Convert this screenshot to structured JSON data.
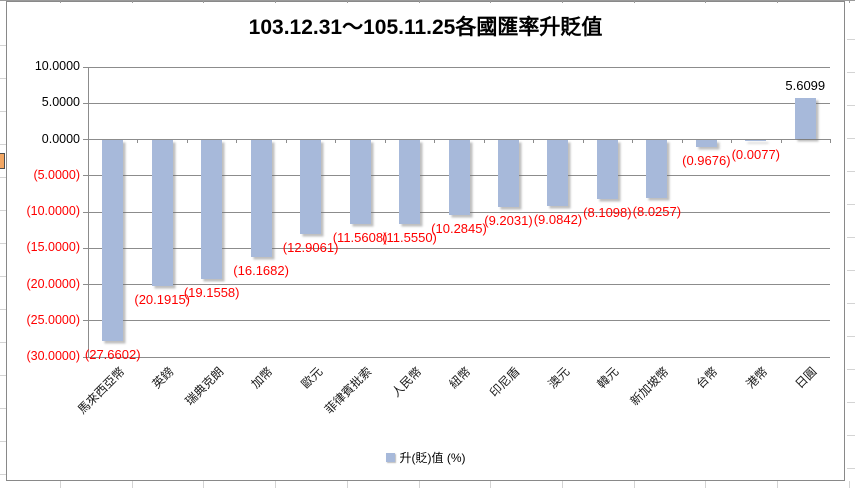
{
  "chart_data": {
    "type": "bar",
    "title": "103.12.31～105.11.25各國匯率升貶值",
    "categories": [
      "馬來西亞幣",
      "英鎊",
      "瑞典克朗",
      "加幣",
      "歐元",
      "菲律賓批索",
      "人民幣",
      "紐幣",
      "印尼盾",
      "澳元",
      "韓元",
      "新加坡幣",
      "台幣",
      "港幣",
      "日圓"
    ],
    "series": [
      {
        "name": "升(貶)值 (%)",
        "values": [
          -27.6602,
          -20.1915,
          -19.1558,
          -16.1682,
          -12.9061,
          -11.5608,
          -11.555,
          -10.2845,
          -9.2031,
          -9.0842,
          -8.1098,
          -8.0257,
          -0.9676,
          -0.0077,
          5.6099
        ],
        "data_labels": [
          "(27.6602)",
          "(20.1915)",
          "(19.1558)",
          "(16.1682)",
          "(12.9061)",
          "(11.5608)",
          "(11.5550)",
          "(10.2845)",
          "(9.2031)",
          "(9.0842)",
          "(8.1098)",
          "(8.0257)",
          "(0.9676)",
          "(0.0077)",
          "5.6099"
        ]
      }
    ],
    "y_axis": {
      "min": -30,
      "max": 10,
      "step": 5,
      "tick_values": [
        10,
        5,
        0,
        -5,
        -10,
        -15,
        -20,
        -25,
        -30
      ],
      "tick_labels": [
        "10.0000",
        "5.0000",
        "0.0000",
        "(5.0000)",
        "(10.0000)",
        "(15.0000)",
        "(20.0000)",
        "(25.0000)",
        "(30.0000)"
      ]
    },
    "grid": true,
    "legend_position": "bottom",
    "note": "negative values rendered in red with parentheses"
  },
  "colors": {
    "bar_fill": "#A7B9DA",
    "negative_text": "#FF0000",
    "positive_text": "#000000",
    "gridline": "#8C8C8C",
    "axis_line": "#8C8C8C",
    "chart_border": "#898989",
    "spreadsheet_gridline": "#D4D4D4",
    "spreadsheet_gridline_dark": "#9A9A9A",
    "cell_fragment_fill": "#F2A663"
  }
}
